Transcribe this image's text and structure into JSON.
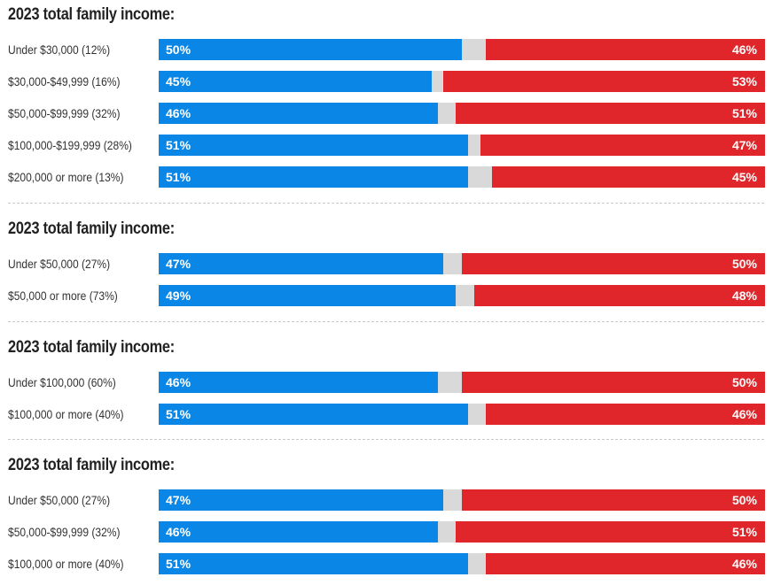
{
  "colors": {
    "democrat": "#0a86e6",
    "republican": "#e0262b",
    "other": "#d9d9d9"
  },
  "chart_data": [
    {
      "type": "bar",
      "title": "2023 total family income:",
      "categories": [
        "Under $30,000 (12%)",
        "$30,000-$49,999 (16%)",
        "$50,000-$99,999 (32%)",
        "$100,000-$199,999 (28%)",
        "$200,000 or more (13%)"
      ],
      "series": [
        {
          "values": [
            50,
            45,
            46,
            51,
            51
          ],
          "labels": [
            "50%",
            "45%",
            "46%",
            "51%",
            "51%"
          ],
          "color": "#0a86e6"
        },
        {
          "values": [
            46,
            53,
            51,
            47,
            45
          ],
          "labels": [
            "46%",
            "53%",
            "51%",
            "47%",
            "45%"
          ],
          "color": "#e0262b"
        }
      ]
    },
    {
      "type": "bar",
      "title": "2023 total family income:",
      "categories": [
        "Under $50,000 (27%)",
        "$50,000 or more (73%)"
      ],
      "series": [
        {
          "values": [
            47,
            49
          ],
          "labels": [
            "47%",
            "49%"
          ],
          "color": "#0a86e6"
        },
        {
          "values": [
            50,
            48
          ],
          "labels": [
            "50%",
            "48%"
          ],
          "color": "#e0262b"
        }
      ]
    },
    {
      "type": "bar",
      "title": "2023 total family income:",
      "categories": [
        "Under $100,000 (60%)",
        "$100,000 or more (40%)"
      ],
      "series": [
        {
          "values": [
            46,
            51
          ],
          "labels": [
            "46%",
            "51%"
          ],
          "color": "#0a86e6"
        },
        {
          "values": [
            50,
            46
          ],
          "labels": [
            "50%",
            "46%"
          ],
          "color": "#e0262b"
        }
      ]
    },
    {
      "type": "bar",
      "title": "2023 total family income:",
      "categories": [
        "Under $50,000 (27%)",
        "$50,000-$99,999 (32%)",
        "$100,000 or more (40%)"
      ],
      "series": [
        {
          "values": [
            47,
            46,
            51
          ],
          "labels": [
            "47%",
            "46%",
            "51%"
          ],
          "color": "#0a86e6"
        },
        {
          "values": [
            50,
            51,
            46
          ],
          "labels": [
            "50%",
            "51%",
            "46%"
          ],
          "color": "#e0262b"
        }
      ]
    }
  ]
}
